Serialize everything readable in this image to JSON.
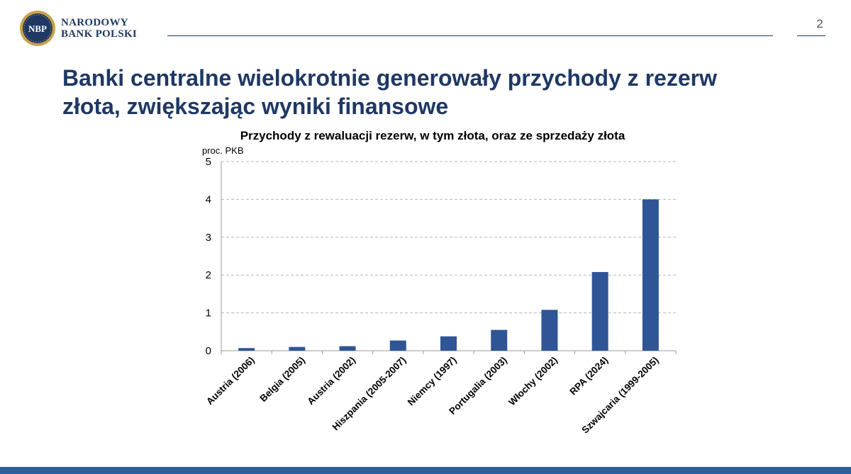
{
  "brand": {
    "name_line1": "NARODOWY",
    "name_line2": "BANK POLSKI",
    "mark_text": "NBP"
  },
  "slide": {
    "title": "Banki centralne wielokrotnie generowały przychody z rezerw złota, zwiększając wyniki finansowe",
    "page_number": "2"
  },
  "colors": {
    "navy": "#1f3864",
    "bar": "#2f5597",
    "band": "#2f5f9a"
  },
  "chart_data": {
    "type": "bar",
    "title": "Przychody z rewaluacji rezerw, w tym złota, oraz ze sprzedaży złota",
    "ylabel": "proc. PKB",
    "xlabel": "",
    "categories": [
      "Austria (2006)",
      "Belgia (2005)",
      "Austria (2002)",
      "Hiszpania (2005-2007)",
      "Niemcy (1997)",
      "Portugalia (2003)",
      "Włochy (2002)",
      "RPA (2024)",
      "Szwajcaria (1999-2005)"
    ],
    "values": [
      0.07,
      0.1,
      0.12,
      0.27,
      0.38,
      0.55,
      1.08,
      2.08,
      4.0
    ],
    "ylim": [
      0,
      5
    ],
    "yticks": [
      "0",
      "1",
      "2",
      "3",
      "4",
      "5"
    ],
    "grid": true,
    "legend": "none"
  }
}
